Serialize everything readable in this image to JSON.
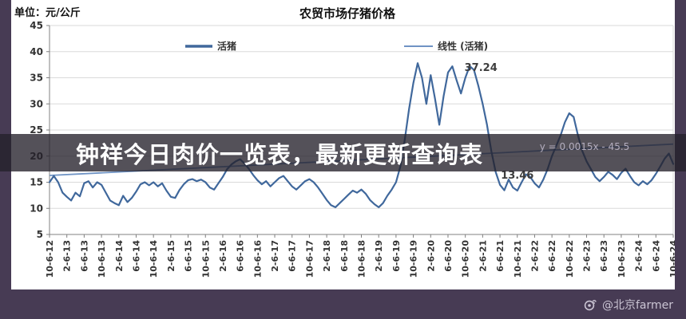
{
  "page": {
    "unit_label": "单位：元/公斤",
    "overlay_banner": {
      "text": "钟祥今日肉价一览表，最新更新查询表"
    },
    "watermark": {
      "text": "@北京farmer",
      "icon": "weibo-eye-icon"
    },
    "frame_color": "#473b54",
    "banner_color": "rgba(36,32,42,0.78)"
  },
  "chart_data": {
    "type": "line",
    "title": "农贸市场仔猪价格",
    "ylabel": "元/公斤",
    "ylim": [
      5,
      45
    ],
    "ytick_step": 5,
    "grid": true,
    "legend_position": "top",
    "categories": [
      "10-6-12",
      "2-6-13",
      "6-6-13",
      "10-6-13",
      "2-6-14",
      "6-6-14",
      "10-6-14",
      "2-6-15",
      "6-6-15",
      "10-6-15",
      "2-6-16",
      "6-6-16",
      "10-6-16",
      "2-6-17",
      "6-6-17",
      "10-6-17",
      "2-6-18",
      "6-6-18",
      "10-6-18",
      "2-6-19",
      "6-6-19",
      "10-6-19",
      "2-6-20",
      "6-6-20",
      "10-6-20",
      "2-6-21",
      "6-6-21",
      "10-6-21",
      "2-6-22",
      "6-6-22",
      "10-6-22",
      "2-6-23",
      "6-6-23",
      "10-6-23",
      "2-6-24",
      "6-6-24",
      "10-6-24"
    ],
    "series": [
      {
        "name": "活猪",
        "color": "#40689c",
        "values": [
          15.0,
          16.2,
          15.0,
          13.0,
          12.2,
          11.5,
          13.0,
          12.3,
          14.8,
          15.2,
          14.0,
          15.0,
          14.5,
          13.0,
          11.5,
          11.0,
          10.6,
          12.4,
          11.2,
          12.0,
          13.2,
          14.6,
          15.0,
          14.4,
          15.0,
          14.2,
          14.8,
          13.4,
          12.2,
          12.0,
          13.5,
          14.6,
          15.4,
          15.6,
          15.2,
          15.5,
          15.0,
          14.0,
          13.6,
          14.8,
          16.0,
          17.5,
          18.4,
          19.0,
          19.4,
          18.6,
          17.6,
          16.4,
          15.4,
          14.6,
          15.2,
          14.2,
          15.0,
          15.8,
          16.2,
          15.2,
          14.2,
          13.6,
          14.4,
          15.2,
          15.6,
          15.0,
          14.0,
          12.8,
          11.6,
          10.6,
          10.2,
          11.0,
          11.8,
          12.6,
          13.4,
          13.0,
          13.6,
          12.8,
          11.6,
          10.8,
          10.2,
          11.0,
          12.4,
          13.6,
          15.0,
          18.0,
          23.0,
          29.0,
          34.0,
          37.8,
          35.0,
          30.0,
          35.5,
          31.0,
          26.0,
          31.5,
          36.0,
          37.2,
          34.5,
          32.0,
          35.0,
          37.24,
          36.5,
          33.5,
          30.0,
          26.0,
          21.0,
          17.0,
          14.5,
          13.46,
          15.5,
          14.0,
          13.4,
          15.0,
          16.5,
          16.0,
          14.8,
          14.0,
          15.5,
          17.5,
          20.0,
          22.0,
          24.0,
          26.5,
          28.2,
          27.5,
          24.0,
          21.0,
          19.0,
          17.5,
          16.0,
          15.2,
          16.0,
          17.0,
          16.4,
          15.6,
          16.8,
          17.6,
          16.2,
          15.0,
          14.4,
          15.2,
          14.6,
          15.4,
          16.6,
          18.0,
          19.5,
          20.5,
          18.5
        ]
      },
      {
        "name": "线性 (活猪)",
        "color": "#6f93c4",
        "kind": "trend",
        "endpoints": [
          16.3,
          22.3
        ]
      }
    ],
    "annotations": [
      {
        "kind": "value",
        "text": "37.24",
        "tick": 24.9,
        "value": 36.3
      },
      {
        "kind": "value",
        "text": "13.46",
        "tick": 27.0,
        "value": 15.7
      },
      {
        "kind": "formula",
        "text": "y = 0.0015x - 45.5",
        "tick": 30.9,
        "value": 21.8
      }
    ]
  }
}
